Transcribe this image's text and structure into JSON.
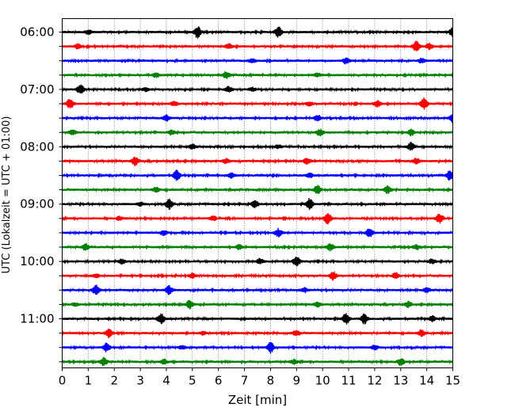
{
  "chart_data": {
    "type": "line",
    "title": "",
    "xlabel": "Zeit  [min]",
    "ylabel": "UTC (Lokalzeit = UTC + 01:00)",
    "xlim": [
      0,
      15
    ],
    "x_ticks": [
      "0",
      "1",
      "2",
      "3",
      "4",
      "5",
      "6",
      "7",
      "8",
      "9",
      "10",
      "11",
      "12",
      "13",
      "14",
      "15"
    ],
    "y_tick_labels": [
      "06:00",
      "07:00",
      "08:00",
      "09:00",
      "10:00",
      "11:00"
    ],
    "grid": "vertical dotted lines at each minute",
    "line_color_cycle": [
      "#000000",
      "#ff0000",
      "#0000ff",
      "#008000"
    ],
    "rows": [
      {
        "start": "06:00",
        "color": "#000000",
        "events": [
          [
            5.2,
            1.0
          ],
          [
            8.3,
            0.9
          ],
          [
            15.0,
            0.8
          ],
          [
            1.0,
            0.4
          ]
        ]
      },
      {
        "start": "06:15",
        "color": "#ff0000",
        "events": [
          [
            13.6,
            1.0
          ],
          [
            14.1,
            0.5
          ],
          [
            6.4,
            0.4
          ],
          [
            0.6,
            0.4
          ]
        ]
      },
      {
        "start": "06:30",
        "color": "#0000ff",
        "events": [
          [
            10.9,
            0.5
          ],
          [
            7.3,
            0.3
          ],
          [
            13.8,
            0.4
          ]
        ]
      },
      {
        "start": "06:45",
        "color": "#008000",
        "events": [
          [
            6.3,
            0.6
          ],
          [
            3.6,
            0.4
          ],
          [
            9.8,
            0.3
          ]
        ]
      },
      {
        "start": "07:00",
        "color": "#000000",
        "events": [
          [
            0.7,
            0.8
          ],
          [
            6.4,
            0.5
          ],
          [
            7.3,
            0.3
          ],
          [
            3.2,
            0.3
          ]
        ]
      },
      {
        "start": "07:15",
        "color": "#ff0000",
        "events": [
          [
            0.3,
            0.9
          ],
          [
            13.9,
            1.0
          ],
          [
            12.1,
            0.5
          ],
          [
            9.5,
            0.4
          ],
          [
            4.3,
            0.4
          ]
        ]
      },
      {
        "start": "07:30",
        "color": "#0000ff",
        "events": [
          [
            4.0,
            0.5
          ],
          [
            9.8,
            0.6
          ],
          [
            15.0,
            0.8
          ]
        ]
      },
      {
        "start": "07:45",
        "color": "#008000",
        "events": [
          [
            9.9,
            0.6
          ],
          [
            4.2,
            0.4
          ],
          [
            13.4,
            0.5
          ],
          [
            0.4,
            0.4
          ]
        ]
      },
      {
        "start": "08:00",
        "color": "#000000",
        "events": [
          [
            13.4,
            0.7
          ],
          [
            5.0,
            0.4
          ],
          [
            8.3,
            0.3
          ]
        ]
      },
      {
        "start": "08:15",
        "color": "#ff0000",
        "events": [
          [
            2.8,
            0.8
          ],
          [
            9.4,
            0.5
          ],
          [
            13.6,
            0.5
          ],
          [
            6.3,
            0.4
          ]
        ]
      },
      {
        "start": "08:30",
        "color": "#0000ff",
        "events": [
          [
            4.4,
            0.9
          ],
          [
            14.9,
            0.9
          ],
          [
            9.5,
            0.4
          ],
          [
            6.5,
            0.4
          ]
        ]
      },
      {
        "start": "08:45",
        "color": "#008000",
        "events": [
          [
            9.8,
            0.8
          ],
          [
            12.5,
            0.7
          ],
          [
            3.6,
            0.4
          ]
        ]
      },
      {
        "start": "09:00",
        "color": "#000000",
        "events": [
          [
            4.1,
            0.9
          ],
          [
            9.5,
            1.0
          ],
          [
            7.4,
            0.6
          ],
          [
            3.0,
            0.3
          ]
        ]
      },
      {
        "start": "09:15",
        "color": "#ff0000",
        "events": [
          [
            10.2,
            1.0
          ],
          [
            14.5,
            0.9
          ],
          [
            5.8,
            0.4
          ],
          [
            2.2,
            0.3
          ]
        ]
      },
      {
        "start": "09:30",
        "color": "#0000ff",
        "events": [
          [
            11.8,
            0.8
          ],
          [
            8.3,
            0.7
          ],
          [
            3.9,
            0.4
          ]
        ]
      },
      {
        "start": "09:45",
        "color": "#008000",
        "events": [
          [
            10.3,
            0.6
          ],
          [
            0.9,
            0.6
          ],
          [
            6.8,
            0.4
          ],
          [
            13.6,
            0.4
          ]
        ]
      },
      {
        "start": "10:00",
        "color": "#000000",
        "events": [
          [
            9.0,
            0.9
          ],
          [
            7.6,
            0.5
          ],
          [
            14.2,
            0.4
          ],
          [
            2.3,
            0.4
          ]
        ]
      },
      {
        "start": "10:15",
        "color": "#ff0000",
        "events": [
          [
            10.4,
            0.8
          ],
          [
            12.8,
            0.5
          ],
          [
            5.0,
            0.4
          ],
          [
            1.3,
            0.3
          ]
        ]
      },
      {
        "start": "10:30",
        "color": "#0000ff",
        "events": [
          [
            1.3,
            0.9
          ],
          [
            4.1,
            0.8
          ],
          [
            9.3,
            0.4
          ],
          [
            14.0,
            0.4
          ]
        ]
      },
      {
        "start": "10:45",
        "color": "#008000",
        "events": [
          [
            4.9,
            0.7
          ],
          [
            9.8,
            0.4
          ],
          [
            13.3,
            0.5
          ],
          [
            0.5,
            0.3
          ]
        ]
      },
      {
        "start": "11:00",
        "color": "#000000",
        "events": [
          [
            3.8,
            0.9
          ],
          [
            10.9,
            1.0
          ],
          [
            11.6,
            0.9
          ],
          [
            14.2,
            0.5
          ]
        ]
      },
      {
        "start": "11:15",
        "color": "#ff0000",
        "events": [
          [
            1.8,
            0.7
          ],
          [
            9.0,
            0.5
          ],
          [
            13.8,
            0.6
          ],
          [
            5.4,
            0.3
          ]
        ]
      },
      {
        "start": "11:30",
        "color": "#0000ff",
        "events": [
          [
            1.7,
            0.8
          ],
          [
            8.0,
            0.9
          ],
          [
            12.0,
            0.4
          ],
          [
            4.6,
            0.3
          ]
        ]
      },
      {
        "start": "11:45",
        "color": "#008000",
        "events": [
          [
            1.6,
            0.7
          ],
          [
            3.9,
            0.4
          ],
          [
            13.0,
            0.6
          ],
          [
            8.9,
            0.4
          ]
        ]
      }
    ]
  }
}
